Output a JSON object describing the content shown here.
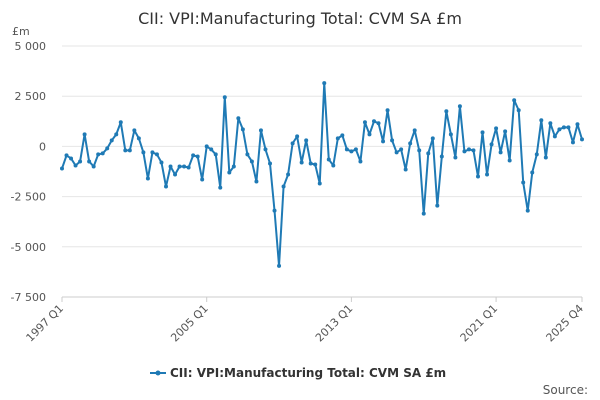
{
  "chart_data": {
    "type": "line",
    "title": "CII: VPI:Manufacturing Total: CVM SA £m",
    "unit_label": "£m",
    "source_label": "Source:",
    "x_start_label": "1997 Q1",
    "x_tick_labels": [
      "1997 Q1",
      "2005 Q1",
      "2013 Q1",
      "2021 Q1",
      "2025 Q4"
    ],
    "x_tick_index": [
      0,
      32,
      64,
      96,
      115
    ],
    "y_ticks": [
      5000,
      2500,
      0,
      -2500,
      -5000,
      -7500
    ],
    "y_tick_labels": [
      "5 000",
      "2 500",
      "0",
      "-2 500",
      "-5 000",
      "-7 500"
    ],
    "ylim": [
      -7500,
      5000
    ],
    "grid": true,
    "legend_position": "bottom",
    "colors": {
      "line": "#1f7ab5",
      "grid": "#e6e6e6",
      "axis": "#cccccc"
    },
    "series": [
      {
        "name": "CII: VPI:Manufacturing Total: CVM SA £m",
        "values": [
          -1100,
          -450,
          -600,
          -950,
          -750,
          600,
          -750,
          -1000,
          -400,
          -350,
          -100,
          300,
          600,
          1200,
          -200,
          -200,
          800,
          400,
          -300,
          -1600,
          -300,
          -400,
          -800,
          -2000,
          -1000,
          -1400,
          -1000,
          -1000,
          -1050,
          -450,
          -500,
          -1650,
          0,
          -150,
          -400,
          -2050,
          2450,
          -1300,
          -1000,
          1400,
          850,
          -400,
          -750,
          -1750,
          800,
          -150,
          -850,
          -3200,
          -5950,
          -2000,
          -1400,
          150,
          500,
          -800,
          300,
          -850,
          -900,
          -1850,
          3150,
          -650,
          -950,
          400,
          550,
          -150,
          -250,
          -150,
          -750,
          1200,
          600,
          1250,
          1150,
          250,
          1800,
          300,
          -300,
          -150,
          -1150,
          150,
          800,
          -200,
          -3350,
          -350,
          400,
          -2950,
          -500,
          1750,
          600,
          -550,
          2000,
          -250,
          -150,
          -200,
          -1500,
          700,
          -1400,
          100,
          900,
          -300,
          750,
          -700,
          2300,
          1800,
          -1800,
          -3200,
          -1300,
          -400,
          1300,
          -550,
          1150,
          500,
          850,
          950,
          950,
          200,
          1100,
          350
        ]
      }
    ]
  }
}
